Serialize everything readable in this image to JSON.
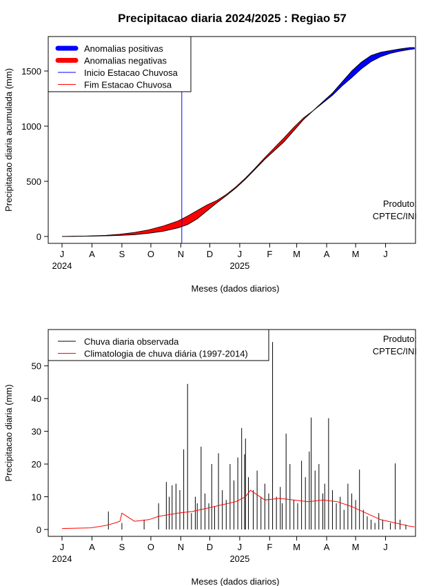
{
  "title": "Precipitacao diaria 2024/2025 : Regiao 57",
  "chart_data": [
    {
      "id": "top",
      "type": "area",
      "ylabel": "Precipitacao diaria acumulada (mm)",
      "xlabel": "Meses (dados diarios)",
      "ylim": [
        0,
        1750
      ],
      "yticks": [
        0,
        500,
        1000,
        1500
      ],
      "month_ticks": [
        "J",
        "A",
        "S",
        "O",
        "N",
        "D",
        "J",
        "F",
        "M",
        "A",
        "M",
        "J"
      ],
      "year_labels": [
        {
          "text": "2024",
          "month_index": 0
        },
        {
          "text": "2025",
          "month_index": 6
        }
      ],
      "legend": {
        "position": "top-left",
        "entries": [
          {
            "label": "Anomalias positivas",
            "color": "#0000ff",
            "style": "thick"
          },
          {
            "label": "Anomalias negativas",
            "color": "#ff0000",
            "style": "thick"
          },
          {
            "label": "Inicio Estacao Chuvosa",
            "color": "#0000ff",
            "style": "thin"
          },
          {
            "label": "Fim Estacao Chuvosa",
            "color": "#ff0000",
            "style": "thin"
          }
        ]
      },
      "credit": [
        "Produto:",
        "CPTEC/INI"
      ],
      "rainy_season_start_day": 124,
      "series": [
        {
          "key": "observed",
          "days": [
            0,
            30,
            45,
            60,
            75,
            90,
            105,
            120,
            130,
            140,
            150,
            160,
            170,
            180,
            190,
            200,
            210,
            220,
            230,
            240,
            250,
            260,
            270,
            280,
            290,
            300,
            310,
            320,
            330,
            340,
            350,
            360,
            365
          ],
          "values": [
            0,
            3,
            6,
            10,
            16,
            30,
            48,
            78,
            108,
            160,
            232,
            303,
            370,
            440,
            520,
            610,
            700,
            780,
            860,
            960,
            1060,
            1140,
            1220,
            1300,
            1400,
            1500,
            1580,
            1640,
            1670,
            1685,
            1700,
            1712,
            1712
          ]
        },
        {
          "key": "climatology",
          "days": [
            0,
            30,
            45,
            60,
            75,
            90,
            105,
            120,
            130,
            140,
            150,
            160,
            170,
            180,
            190,
            200,
            210,
            220,
            230,
            240,
            250,
            260,
            270,
            280,
            290,
            300,
            310,
            320,
            330,
            340,
            350,
            360,
            365
          ],
          "values": [
            0,
            5,
            10,
            20,
            36,
            60,
            95,
            140,
            185,
            235,
            285,
            325,
            380,
            450,
            530,
            620,
            715,
            805,
            895,
            990,
            1075,
            1140,
            1210,
            1280,
            1365,
            1440,
            1520,
            1585,
            1630,
            1660,
            1680,
            1695,
            1700
          ]
        }
      ]
    },
    {
      "id": "bottom",
      "type": "bar",
      "ylabel": "Precipitacao diaria (mm)",
      "xlabel": "Meses (dados diarios)",
      "ylim": [
        0,
        59
      ],
      "yticks": [
        0,
        10,
        20,
        30,
        40,
        50
      ],
      "month_ticks": [
        "J",
        "A",
        "S",
        "O",
        "N",
        "D",
        "J",
        "F",
        "M",
        "A",
        "M",
        "J"
      ],
      "year_labels": [
        {
          "text": "2024",
          "month_index": 0
        },
        {
          "text": "2025",
          "month_index": 6
        }
      ],
      "legend": {
        "position": "top-left",
        "entries": [
          {
            "label": "Chuva diaria observada",
            "color": "#000000",
            "style": "thin"
          },
          {
            "label": "Climatologia de chuva diária (1997-2014)",
            "color": "#ff0000",
            "style": "thin"
          }
        ]
      },
      "credit": [
        "Produto:",
        "CPTEC/INI"
      ],
      "series": [
        {
          "key": "observed_daily",
          "days": [
            48,
            62,
            85,
            100,
            108,
            111,
            114,
            118,
            122,
            126,
            130,
            134,
            138,
            140,
            144,
            148,
            152,
            155,
            158,
            162,
            166,
            170,
            174,
            178,
            182,
            186,
            189,
            190,
            193,
            198,
            202,
            206,
            210,
            214,
            218,
            222,
            226,
            228,
            232,
            236,
            240,
            244,
            248,
            252,
            256,
            258,
            262,
            266,
            270,
            272,
            276,
            280,
            284,
            288,
            292,
            296,
            300,
            304,
            308,
            312,
            316,
            320,
            324,
            328,
            332,
            340,
            345,
            350,
            356
          ],
          "values": [
            5.5,
            2,
            3,
            8,
            14.5,
            10,
            13.5,
            14,
            12,
            24.5,
            44.5,
            5,
            10,
            8,
            25.3,
            11,
            8,
            20,
            7,
            23.3,
            12,
            9,
            20,
            15,
            22,
            31,
            23,
            27.8,
            16,
            12,
            18,
            10,
            14,
            11,
            57.3,
            10,
            13,
            8,
            29.3,
            20,
            9,
            8,
            21,
            16,
            23.8,
            34.2,
            18,
            20,
            11,
            14,
            34,
            12,
            8,
            10,
            6,
            14,
            11,
            9,
            18.3,
            6,
            4,
            3,
            2,
            5,
            3,
            2,
            20.2,
            3,
            1.5
          ]
        },
        {
          "key": "climatology_daily",
          "days": [
            0,
            30,
            45,
            55,
            60,
            62,
            75,
            90,
            100,
            120,
            135,
            150,
            165,
            180,
            190,
            195,
            210,
            225,
            240,
            255,
            270,
            285,
            300,
            315,
            330,
            345,
            360,
            365
          ],
          "values": [
            0.3,
            0.5,
            1.2,
            2,
            2.5,
            5,
            2.5,
            3,
            4,
            5,
            5.5,
            6.5,
            7.5,
            8.5,
            10,
            12,
            9,
            9.5,
            9,
            8.5,
            9,
            8.5,
            7,
            5,
            3,
            2,
            1,
            0.8
          ]
        }
      ]
    }
  ]
}
